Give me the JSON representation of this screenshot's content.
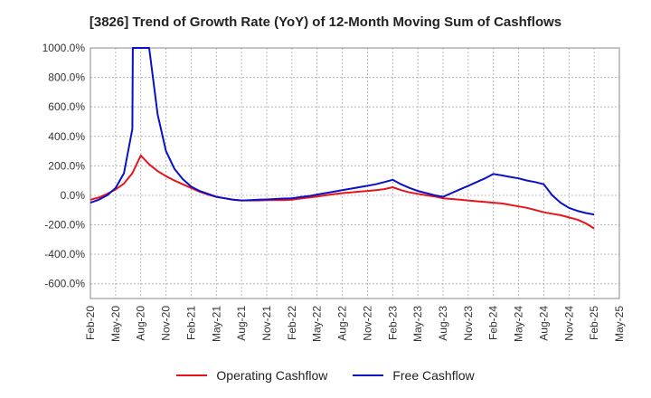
{
  "chart_data": {
    "type": "line",
    "title": "[3826]  Trend of Growth Rate (YoY) of 12-Month Moving Sum of Cashflows",
    "xlabel": "",
    "ylabel": "",
    "ylim": [
      -700,
      1000
    ],
    "yticks": [
      "1000.0%",
      "800.0%",
      "600.0%",
      "400.0%",
      "200.0%",
      "0.0%",
      "-200.0%",
      "-400.0%",
      "-600.0%"
    ],
    "ytick_values": [
      1000,
      800,
      600,
      400,
      200,
      0,
      -200,
      -400,
      -600
    ],
    "xticks": [
      "Feb-20",
      "May-20",
      "Aug-20",
      "Nov-20",
      "Feb-21",
      "May-21",
      "Aug-21",
      "Nov-21",
      "Feb-22",
      "May-22",
      "Aug-22",
      "Nov-22",
      "Feb-23",
      "May-23",
      "Aug-23",
      "Nov-23",
      "Feb-24",
      "May-24",
      "Aug-24",
      "Nov-24",
      "Feb-25",
      "May-25"
    ],
    "grid": true,
    "legend_position": "bottom",
    "series": [
      {
        "name": "Operating Cashflow",
        "color": "#e8141c",
        "points": [
          [
            "Feb-20",
            -30
          ],
          [
            "Mar-20",
            -15
          ],
          [
            "Apr-20",
            10
          ],
          [
            "May-20",
            40
          ],
          [
            "Jun-20",
            80
          ],
          [
            "Jul-20",
            150
          ],
          [
            "Aug-20",
            270
          ],
          [
            "Sep-20",
            210
          ],
          [
            "Oct-20",
            165
          ],
          [
            "Nov-20",
            130
          ],
          [
            "Dec-20",
            100
          ],
          [
            "Jan-21",
            75
          ],
          [
            "Feb-21",
            50
          ],
          [
            "Mar-21",
            25
          ],
          [
            "Apr-21",
            5
          ],
          [
            "May-21",
            -10
          ],
          [
            "Jun-21",
            -20
          ],
          [
            "Jul-21",
            -30
          ],
          [
            "Aug-21",
            -35
          ],
          [
            "Sep-21",
            -35
          ],
          [
            "Oct-21",
            -35
          ],
          [
            "Nov-21",
            -33
          ],
          [
            "Dec-21",
            -33
          ],
          [
            "Jan-22",
            -32
          ],
          [
            "Feb-22",
            -30
          ],
          [
            "Mar-22",
            -22
          ],
          [
            "Apr-22",
            -15
          ],
          [
            "May-22",
            -8
          ],
          [
            "Jun-22",
            0
          ],
          [
            "Jul-22",
            8
          ],
          [
            "Aug-22",
            15
          ],
          [
            "Sep-22",
            20
          ],
          [
            "Oct-22",
            25
          ],
          [
            "Nov-22",
            30
          ],
          [
            "Dec-22",
            35
          ],
          [
            "Jan-23",
            42
          ],
          [
            "Feb-23",
            55
          ],
          [
            "Mar-23",
            35
          ],
          [
            "Apr-23",
            20
          ],
          [
            "May-23",
            10
          ],
          [
            "Jun-23",
            0
          ],
          [
            "Jul-23",
            -8
          ],
          [
            "Aug-23",
            -20
          ],
          [
            "Sep-23",
            -25
          ],
          [
            "Oct-23",
            -30
          ],
          [
            "Nov-23",
            -35
          ],
          [
            "Dec-23",
            -40
          ],
          [
            "Jan-24",
            -45
          ],
          [
            "Feb-24",
            -50
          ],
          [
            "Mar-24",
            -55
          ],
          [
            "Apr-24",
            -65
          ],
          [
            "May-24",
            -75
          ],
          [
            "Jun-24",
            -85
          ],
          [
            "Jul-24",
            -100
          ],
          [
            "Aug-24",
            -115
          ],
          [
            "Sep-24",
            -125
          ],
          [
            "Oct-24",
            -135
          ],
          [
            "Nov-24",
            -150
          ],
          [
            "Dec-24",
            -165
          ],
          [
            "Jan-25",
            -190
          ],
          [
            "Feb-25",
            -225
          ]
        ]
      },
      {
        "name": "Free Cashflow",
        "color": "#0a10c8",
        "points": [
          [
            "Feb-20",
            -50
          ],
          [
            "Mar-20",
            -30
          ],
          [
            "Apr-20",
            0
          ],
          [
            "May-20",
            50
          ],
          [
            "Jun-20",
            150
          ],
          [
            "Jul-20",
            450
          ],
          [
            "Jul-20",
            1000
          ],
          [
            "Aug-20",
            1000
          ],
          [
            "Sep-20",
            1000
          ],
          [
            "Oct-20",
            550
          ],
          [
            "Nov-20",
            300
          ],
          [
            "Dec-20",
            180
          ],
          [
            "Jan-21",
            110
          ],
          [
            "Feb-21",
            60
          ],
          [
            "Mar-21",
            30
          ],
          [
            "Apr-21",
            10
          ],
          [
            "May-21",
            -10
          ],
          [
            "Jun-21",
            -20
          ],
          [
            "Jul-21",
            -30
          ],
          [
            "Aug-21",
            -35
          ],
          [
            "Sep-21",
            -32
          ],
          [
            "Oct-21",
            -30
          ],
          [
            "Nov-21",
            -28
          ],
          [
            "Dec-21",
            -25
          ],
          [
            "Jan-22",
            -22
          ],
          [
            "Feb-22",
            -20
          ],
          [
            "Mar-22",
            -12
          ],
          [
            "Apr-22",
            -5
          ],
          [
            "May-22",
            5
          ],
          [
            "Jun-22",
            15
          ],
          [
            "Jul-22",
            25
          ],
          [
            "Aug-22",
            35
          ],
          [
            "Sep-22",
            45
          ],
          [
            "Oct-22",
            55
          ],
          [
            "Nov-22",
            65
          ],
          [
            "Dec-22",
            75
          ],
          [
            "Jan-23",
            90
          ],
          [
            "Feb-23",
            105
          ],
          [
            "Mar-23",
            75
          ],
          [
            "Apr-23",
            50
          ],
          [
            "May-23",
            30
          ],
          [
            "Jun-23",
            15
          ],
          [
            "Jul-23",
            0
          ],
          [
            "Aug-23",
            -10
          ],
          [
            "Sep-23",
            15
          ],
          [
            "Oct-23",
            40
          ],
          [
            "Nov-23",
            65
          ],
          [
            "Dec-23",
            90
          ],
          [
            "Jan-24",
            115
          ],
          [
            "Feb-24",
            145
          ],
          [
            "Mar-24",
            135
          ],
          [
            "Apr-24",
            125
          ],
          [
            "May-24",
            115
          ],
          [
            "Jun-24",
            100
          ],
          [
            "Jul-24",
            90
          ],
          [
            "Aug-24",
            75
          ],
          [
            "Sep-24",
            0
          ],
          [
            "Oct-24",
            -50
          ],
          [
            "Nov-24",
            -85
          ],
          [
            "Dec-24",
            -105
          ],
          [
            "Jan-25",
            -120
          ],
          [
            "Feb-25",
            -130
          ]
        ]
      }
    ]
  }
}
